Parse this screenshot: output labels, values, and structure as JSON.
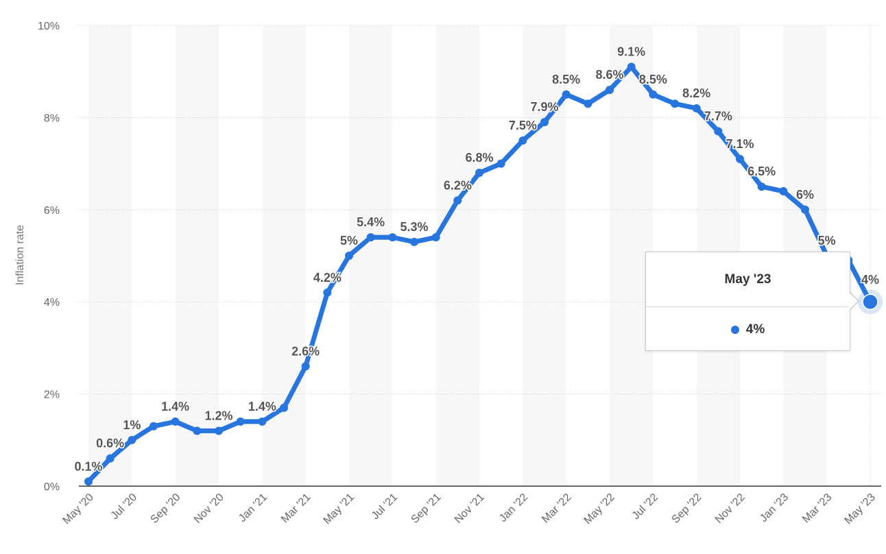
{
  "chart_data": {
    "type": "line",
    "title": "",
    "xlabel": "",
    "ylabel": "Inflation rate",
    "ylim": [
      0,
      10
    ],
    "yticks": [
      "0%",
      "2%",
      "4%",
      "6%",
      "8%",
      "10%"
    ],
    "ytick_values": [
      0,
      2,
      4,
      6,
      8,
      10
    ],
    "xtick_labels": [
      "May '20",
      "Jul '20",
      "Sep '20",
      "Nov '20",
      "Jan '21",
      "Mar '21",
      "May '21",
      "Jul '21",
      "Sep '21",
      "Nov '21",
      "Jan '22",
      "Mar '22",
      "May '22",
      "Jul '22",
      "Sep '22",
      "Nov '22",
      "Jan '23",
      "Mar '23",
      "May '23"
    ],
    "x": [
      "May '20",
      "Jun '20",
      "Jul '20",
      "Aug '20",
      "Sep '20",
      "Oct '20",
      "Nov '20",
      "Dec '20",
      "Jan '21",
      "Feb '21",
      "Mar '21",
      "Apr '21",
      "May '21",
      "Jun '21",
      "Jul '21",
      "Aug '21",
      "Sep '21",
      "Oct '21",
      "Nov '21",
      "Dec '21",
      "Jan '22",
      "Feb '22",
      "Mar '22",
      "Apr '22",
      "May '22",
      "Jun '22",
      "Jul '22",
      "Aug '22",
      "Sep '22",
      "Oct '22",
      "Nov '22",
      "Dec '22",
      "Jan '23",
      "Feb '23",
      "Mar '23",
      "Apr '23",
      "May '23"
    ],
    "series": [
      {
        "values": [
          0.1,
          0.6,
          1.0,
          1.3,
          1.4,
          1.2,
          1.2,
          1.4,
          1.4,
          1.7,
          2.6,
          4.2,
          5.0,
          5.4,
          5.4,
          5.3,
          5.4,
          6.2,
          6.8,
          7.0,
          7.5,
          7.9,
          8.5,
          8.3,
          8.6,
          9.1,
          8.5,
          8.3,
          8.2,
          7.7,
          7.1,
          6.5,
          6.4,
          6.0,
          5.0,
          4.9,
          4.0
        ],
        "color": "#2876dd"
      }
    ],
    "data_labels": [
      {
        "i": 0,
        "text": "0.1%"
      },
      {
        "i": 1,
        "text": "0.6%"
      },
      {
        "i": 2,
        "text": "1%"
      },
      {
        "i": 4,
        "text": "1.4%"
      },
      {
        "i": 6,
        "text": "1.2%"
      },
      {
        "i": 8,
        "text": "1.4%"
      },
      {
        "i": 10,
        "text": "2.6%"
      },
      {
        "i": 11,
        "text": "4.2%"
      },
      {
        "i": 12,
        "text": "5%"
      },
      {
        "i": 13,
        "text": "5.4%"
      },
      {
        "i": 15,
        "text": "5.3%"
      },
      {
        "i": 17,
        "text": "6.2%"
      },
      {
        "i": 18,
        "text": "6.8%"
      },
      {
        "i": 20,
        "text": "7.5%"
      },
      {
        "i": 21,
        "text": "7.9%"
      },
      {
        "i": 22,
        "text": "8.5%"
      },
      {
        "i": 24,
        "text": "8.6%"
      },
      {
        "i": 25,
        "text": "9.1%"
      },
      {
        "i": 26,
        "text": "8.5%"
      },
      {
        "i": 28,
        "text": "8.2%"
      },
      {
        "i": 29,
        "text": "7.7%"
      },
      {
        "i": 30,
        "text": "7.1%"
      },
      {
        "i": 31,
        "text": "6.5%"
      },
      {
        "i": 33,
        "text": "6%"
      },
      {
        "i": 34,
        "text": "5%"
      },
      {
        "i": 36,
        "text": "4%"
      }
    ],
    "grid": true,
    "alternating_bands": true
  },
  "tooltip": {
    "title": "May '23",
    "value": "4%",
    "color": "#2876dd"
  },
  "colors": {
    "line": "#2876dd",
    "band": "#f7f7f7",
    "grid": "#cccccc",
    "axis": "#333333"
  }
}
